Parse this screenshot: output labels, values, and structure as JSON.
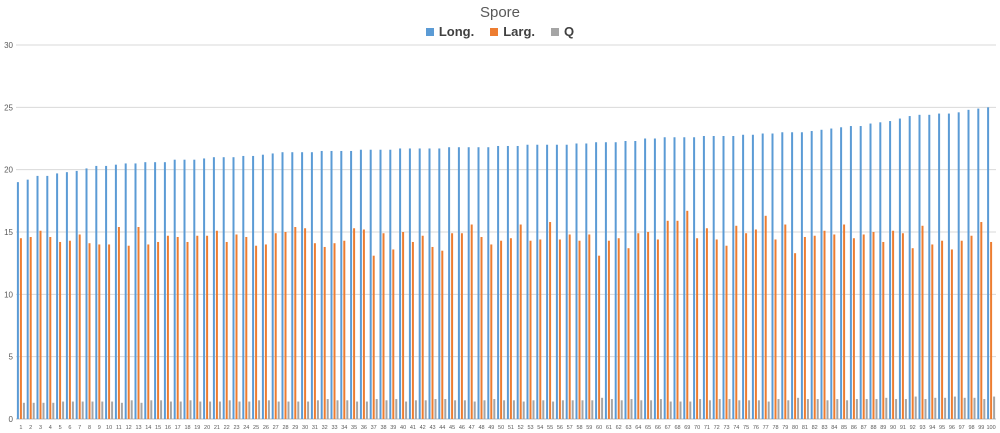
{
  "chart_data": {
    "type": "bar",
    "title": "Spore",
    "xlabel": "",
    "ylabel": "",
    "ylim": [
      0,
      30
    ],
    "yticks": [
      0,
      5,
      10,
      15,
      20,
      25,
      30
    ],
    "grid": true,
    "legend_position": "top",
    "categories": [
      "1",
      "2",
      "3",
      "4",
      "5",
      "6",
      "7",
      "8",
      "9",
      "10",
      "11",
      "12",
      "13",
      "14",
      "15",
      "16",
      "17",
      "18",
      "19",
      "20",
      "21",
      "22",
      "23",
      "24",
      "25",
      "26",
      "27",
      "28",
      "29",
      "30",
      "31",
      "32",
      "33",
      "34",
      "35",
      "36",
      "37",
      "38",
      "39",
      "40",
      "41",
      "42",
      "43",
      "44",
      "45",
      "46",
      "47",
      "48",
      "49",
      "50",
      "51",
      "52",
      "53",
      "54",
      "55",
      "56",
      "57",
      "58",
      "59",
      "60",
      "61",
      "62",
      "63",
      "64",
      "65",
      "66",
      "67",
      "68",
      "69",
      "70",
      "71",
      "72",
      "73",
      "74",
      "75",
      "76",
      "77",
      "78",
      "79",
      "80",
      "81",
      "82",
      "83",
      "84",
      "85",
      "86",
      "87",
      "88",
      "89",
      "90",
      "91",
      "92",
      "93",
      "94",
      "95",
      "96",
      "97",
      "98",
      "99",
      "100"
    ],
    "series": [
      {
        "name": "Long.",
        "color": "#5b9bd5",
        "values": [
          19.0,
          19.2,
          19.5,
          19.5,
          19.7,
          19.8,
          19.9,
          20.1,
          20.3,
          20.3,
          20.4,
          20.5,
          20.5,
          20.6,
          20.6,
          20.6,
          20.8,
          20.8,
          20.8,
          20.9,
          21.0,
          21.0,
          21.0,
          21.1,
          21.1,
          21.2,
          21.3,
          21.4,
          21.4,
          21.4,
          21.4,
          21.5,
          21.5,
          21.5,
          21.5,
          21.6,
          21.6,
          21.6,
          21.6,
          21.7,
          21.7,
          21.7,
          21.7,
          21.7,
          21.8,
          21.8,
          21.8,
          21.8,
          21.8,
          21.9,
          21.9,
          21.9,
          22.0,
          22.0,
          22.0,
          22.0,
          22.0,
          22.1,
          22.1,
          22.2,
          22.2,
          22.2,
          22.3,
          22.3,
          22.5,
          22.5,
          22.6,
          22.6,
          22.6,
          22.6,
          22.7,
          22.7,
          22.7,
          22.7,
          22.8,
          22.8,
          22.9,
          22.9,
          23.0,
          23.0,
          23.0,
          23.1,
          23.2,
          23.3,
          23.4,
          23.5,
          23.5,
          23.7,
          23.8,
          23.9,
          24.1,
          24.3,
          24.4,
          24.4,
          24.5,
          24.5,
          24.6,
          24.8,
          24.9,
          25.0
        ]
      },
      {
        "name": "Larg.",
        "color": "#ed7d31",
        "values": [
          14.5,
          14.6,
          15.1,
          14.6,
          14.2,
          14.3,
          14.8,
          14.1,
          14.0,
          14.0,
          15.4,
          13.9,
          15.4,
          14.0,
          14.2,
          14.7,
          14.6,
          14.2,
          14.7,
          14.7,
          15.1,
          14.2,
          14.8,
          14.6,
          13.9,
          14.0,
          14.9,
          15.0,
          15.4,
          15.3,
          14.1,
          13.8,
          14.1,
          14.3,
          15.3,
          15.2,
          13.1,
          14.9,
          13.6,
          15.0,
          14.2,
          14.7,
          13.8,
          13.5,
          14.9,
          14.9,
          15.6,
          14.6,
          14.0,
          14.3,
          14.5,
          15.6,
          14.3,
          14.4,
          15.8,
          14.4,
          14.8,
          14.3,
          14.8,
          13.1,
          14.3,
          14.5,
          13.7,
          14.9,
          15.0,
          14.4,
          15.9,
          15.9,
          16.7,
          14.5,
          15.3,
          14.4,
          13.9,
          15.5,
          14.9,
          15.2,
          16.3,
          14.4,
          15.6,
          13.3,
          14.6,
          14.7,
          15.1,
          14.8,
          15.6,
          14.5,
          14.8,
          15.0,
          14.2,
          15.1,
          14.9,
          13.7,
          15.5,
          14.0,
          14.3,
          13.6,
          14.3,
          14.7,
          15.8,
          14.2
        ]
      },
      {
        "name": "Q",
        "color": "#a5a5a5",
        "values": [
          1.3,
          1.3,
          1.3,
          1.3,
          1.4,
          1.4,
          1.4,
          1.4,
          1.4,
          1.4,
          1.3,
          1.5,
          1.3,
          1.5,
          1.5,
          1.4,
          1.4,
          1.5,
          1.4,
          1.4,
          1.4,
          1.5,
          1.4,
          1.4,
          1.5,
          1.5,
          1.4,
          1.4,
          1.4,
          1.4,
          1.5,
          1.6,
          1.5,
          1.5,
          1.4,
          1.4,
          1.6,
          1.5,
          1.6,
          1.4,
          1.5,
          1.5,
          1.6,
          1.6,
          1.5,
          1.5,
          1.4,
          1.5,
          1.6,
          1.5,
          1.5,
          1.4,
          1.5,
          1.5,
          1.4,
          1.5,
          1.5,
          1.5,
          1.5,
          1.7,
          1.6,
          1.5,
          1.6,
          1.5,
          1.5,
          1.6,
          1.4,
          1.4,
          1.4,
          1.6,
          1.5,
          1.6,
          1.6,
          1.5,
          1.5,
          1.5,
          1.4,
          1.6,
          1.5,
          1.7,
          1.6,
          1.6,
          1.5,
          1.6,
          1.5,
          1.6,
          1.6,
          1.6,
          1.7,
          1.6,
          1.6,
          1.8,
          1.6,
          1.7,
          1.7,
          1.8,
          1.7,
          1.7,
          1.6,
          1.8
        ]
      }
    ]
  }
}
